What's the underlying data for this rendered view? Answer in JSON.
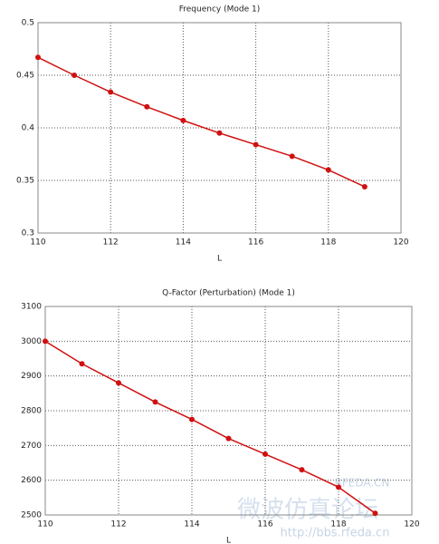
{
  "chart_data": [
    {
      "type": "line",
      "title": "Frequency (Mode 1)",
      "xlabel": "L",
      "x": [
        110,
        111,
        112,
        113,
        114,
        115,
        116,
        117,
        118,
        119
      ],
      "values": [
        0.467,
        0.45,
        0.434,
        0.42,
        0.407,
        0.395,
        0.384,
        0.373,
        0.36,
        0.344
      ],
      "color": "#d01010",
      "xlim": [
        110,
        120
      ],
      "xticks": [
        110,
        112,
        114,
        116,
        118,
        120
      ],
      "ylim": [
        0.3,
        0.5
      ],
      "yticks": [
        0.3,
        0.35,
        0.4,
        0.45,
        0.5
      ],
      "grid": true
    },
    {
      "type": "line",
      "title": "Q-Factor (Perturbation) (Mode 1)",
      "xlabel": "L",
      "x": [
        110,
        111,
        112,
        113,
        114,
        115,
        116,
        117,
        118,
        119
      ],
      "values": [
        3000,
        2935,
        2880,
        2825,
        2775,
        2720,
        2675,
        2630,
        2580,
        2505
      ],
      "color": "#d01010",
      "xlim": [
        110,
        120
      ],
      "xticks": [
        110,
        112,
        114,
        116,
        118,
        120
      ],
      "ylim": [
        2500,
        3100
      ],
      "yticks": [
        2500,
        2600,
        2700,
        2800,
        2900,
        3000,
        3100
      ],
      "grid": true
    }
  ],
  "watermark": {
    "site": "RFEDA.CN",
    "name": "微波仿真论坛",
    "url": "http://bbs.rfeda.cn"
  }
}
